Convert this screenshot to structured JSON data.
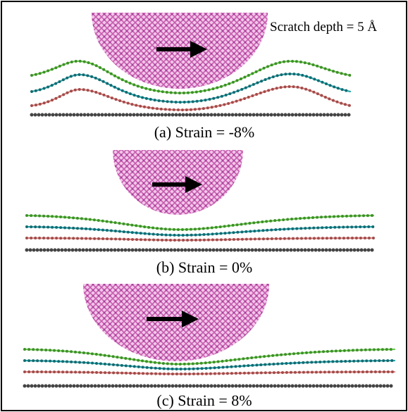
{
  "annotation": "Scratch depth = 5 Å",
  "panels": [
    {
      "caption": "(a) Strain = -8%"
    },
    {
      "caption": "(b) Strain = 0%"
    },
    {
      "caption": "(c) Strain = 8%"
    }
  ]
}
